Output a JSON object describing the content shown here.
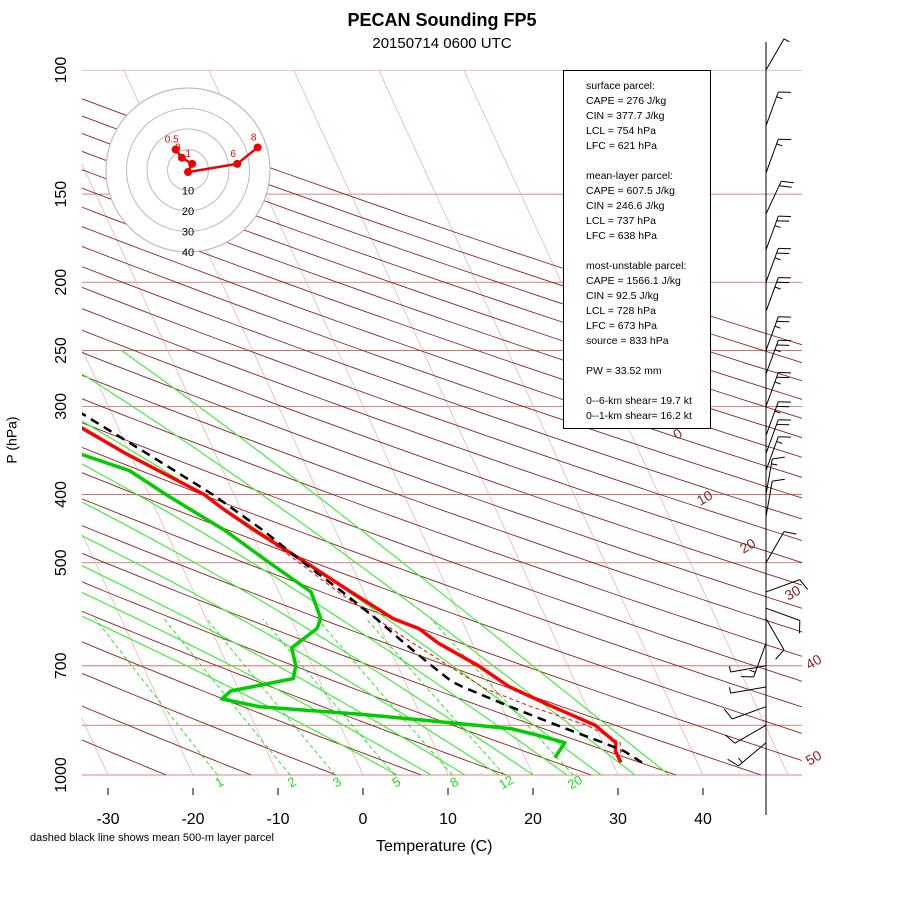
{
  "title": "PECAN Sounding FP5",
  "subtitle": "20150714 0600 UTC",
  "footnote": "dashed black line shows mean 500-m layer parcel",
  "colors": {
    "dry_adiabat": "#8b2323",
    "mixing_ratio": "#00dd00",
    "temperature": "#ff0000",
    "dewpoint": "#00cc00",
    "parcel": "#000000",
    "isobar": "#cd5c5c"
  },
  "info_box": [
    [
      "surface parcel:",
      "CAPE = 276 J/kg",
      "CIN = 377.7 J/kg",
      "LCL = 754 hPa",
      "LFC = 621 hPa"
    ],
    [
      "mean-layer parcel:",
      "CAPE = 607.5 J/kg",
      "CIN = 246.6 J/kg",
      "LCL = 737 hPa",
      "LFC = 638 hPa"
    ],
    [
      "most-unstable parcel:",
      "CAPE = 1566.1 J/kg",
      "CIN = 92.5 J/kg",
      "LCL = 728 hPa",
      "LFC = 673 hPa",
      "source = 833 hPa"
    ],
    [
      "PW =  33.52 mm"
    ],
    [
      "0--6-km shear= 19.7 kt",
      "0--1-km shear= 16.2 kt"
    ]
  ],
  "chart_data": {
    "type": "skew-t",
    "xlabel": "Temperature (C)",
    "ylabel": "P (hPa)",
    "xticks": [
      "-30",
      "-20",
      "-10",
      "0",
      "10",
      "20",
      "30",
      "40"
    ],
    "yticks": [
      "100",
      "150",
      "200",
      "250",
      "300",
      "400",
      "500",
      "700",
      "1000"
    ],
    "isotherm_labels": [
      "0",
      "10",
      "20",
      "30",
      "40",
      "50"
    ],
    "mixing_ratio_labels": [
      "1",
      "2",
      "3",
      "5",
      "8",
      "12",
      "20"
    ],
    "hodograph_rings": [
      "10",
      "20",
      "30",
      "40"
    ],
    "hodograph_points": [
      {
        "label": "0.5",
        "u": -3.0,
        "v": 5.0
      },
      {
        "label": "0",
        "u": -1.5,
        "v": 3.0
      },
      {
        "label": "1",
        "u": 1.0,
        "v": 1.5
      },
      {
        "label": "",
        "u": 0.0,
        "v": -0.5
      },
      {
        "label": "6",
        "u": 12.0,
        "v": 1.5
      },
      {
        "label": "8",
        "u": 17.0,
        "v": 5.5
      }
    ],
    "temperature": [
      [
        960,
        31.0
      ],
      [
        925,
        31.0
      ],
      [
        900,
        31.5
      ],
      [
        850,
        30.0
      ],
      [
        800,
        26.0
      ],
      [
        750,
        22.0
      ],
      [
        700,
        19.5
      ],
      [
        650,
        16.0
      ],
      [
        620,
        14.5
      ],
      [
        600,
        12.0
      ],
      [
        550,
        8.5
      ],
      [
        500,
        4.8
      ],
      [
        450,
        0.5
      ],
      [
        420,
        -2.0
      ],
      [
        400,
        -3.5
      ],
      [
        350,
        -10.5
      ],
      [
        300,
        -17.5
      ],
      [
        270,
        -22.5
      ],
      [
        250,
        -26.5
      ],
      [
        230,
        -29.0
      ],
      [
        200,
        -35.5
      ],
      [
        170,
        -43.0
      ],
      [
        150,
        -48.0
      ],
      [
        130,
        -53.0
      ],
      [
        120,
        -57.0
      ],
      [
        110,
        -57.5
      ],
      [
        100,
        -58.5
      ]
    ],
    "dewpoint": [
      [
        945,
        23.5
      ],
      [
        900,
        25.5
      ],
      [
        880,
        23.0
      ],
      [
        860,
        20.0
      ],
      [
        850,
        16.0
      ],
      [
        820,
        3.0
      ],
      [
        800,
        -8.5
      ],
      [
        780,
        -12.5
      ],
      [
        760,
        -11.0
      ],
      [
        730,
        -3.0
      ],
      [
        700,
        -2.0
      ],
      [
        660,
        -1.5
      ],
      [
        620,
        2.5
      ],
      [
        600,
        3.5
      ],
      [
        550,
        3.8
      ],
      [
        500,
        0.5
      ],
      [
        450,
        -3.0
      ],
      [
        400,
        -8.0
      ],
      [
        370,
        -11.0
      ],
      [
        350,
        -16.0
      ],
      [
        330,
        -25.0
      ],
      [
        300,
        -29.0
      ],
      [
        280,
        -31.0
      ],
      [
        260,
        -32.0
      ],
      [
        250,
        -36.0
      ],
      [
        240,
        -38.0
      ],
      [
        230,
        -43.0
      ],
      [
        215,
        -46.0
      ],
      [
        200,
        -49.0
      ],
      [
        190,
        -47.0
      ],
      [
        170,
        -54.0
      ],
      [
        150,
        -63.0
      ],
      [
        130,
        -66.0
      ],
      [
        120,
        -67.0
      ],
      [
        110,
        -72.0
      ],
      [
        100,
        -73.0
      ]
    ],
    "parcel_mean_layer": [
      [
        960,
        33.5
      ],
      [
        925,
        32.0
      ],
      [
        900,
        30.0
      ],
      [
        850,
        25.5
      ],
      [
        800,
        21.0
      ],
      [
        750,
        16.5
      ],
      [
        737,
        15.5
      ],
      [
        700,
        14.0
      ],
      [
        650,
        12.0
      ],
      [
        600,
        10.0
      ],
      [
        550,
        7.5
      ],
      [
        500,
        4.5
      ],
      [
        450,
        1.5
      ],
      [
        400,
        -2.5
      ],
      [
        350,
        -8.0
      ],
      [
        300,
        -14.5
      ],
      [
        250,
        -22.5
      ],
      [
        200,
        -32.5
      ],
      [
        150,
        -45.0
      ],
      [
        100,
        -61.0
      ]
    ],
    "parcel_surface_dashed_red": [
      [
        930,
        31.5
      ],
      [
        900,
        32.0
      ],
      [
        850,
        29.0
      ],
      [
        800,
        23.5
      ],
      [
        754,
        19.0
      ],
      [
        700,
        16.0
      ],
      [
        650,
        13.0
      ],
      [
        600,
        10.0
      ],
      [
        550,
        7.0
      ],
      [
        500,
        4.0
      ],
      [
        450,
        0.5
      ]
    ],
    "wind_barbs": [
      [
        100,
        30,
        5
      ],
      [
        120,
        20,
        15
      ],
      [
        140,
        20,
        15
      ],
      [
        160,
        25,
        20
      ],
      [
        180,
        20,
        25
      ],
      [
        200,
        20,
        25
      ],
      [
        220,
        20,
        25
      ],
      [
        250,
        20,
        25
      ],
      [
        270,
        20,
        25
      ],
      [
        300,
        20,
        25
      ],
      [
        330,
        20,
        25
      ],
      [
        350,
        20,
        20
      ],
      [
        370,
        20,
        15
      ],
      [
        400,
        10,
        15
      ],
      [
        430,
        10,
        10
      ],
      [
        500,
        30,
        10
      ],
      [
        550,
        70,
        10
      ],
      [
        580,
        110,
        10
      ],
      [
        600,
        150,
        10
      ],
      [
        650,
        200,
        15
      ],
      [
        700,
        260,
        5
      ],
      [
        750,
        260,
        5
      ],
      [
        800,
        250,
        10
      ],
      [
        850,
        240,
        10
      ],
      [
        900,
        230,
        15
      ]
    ]
  }
}
